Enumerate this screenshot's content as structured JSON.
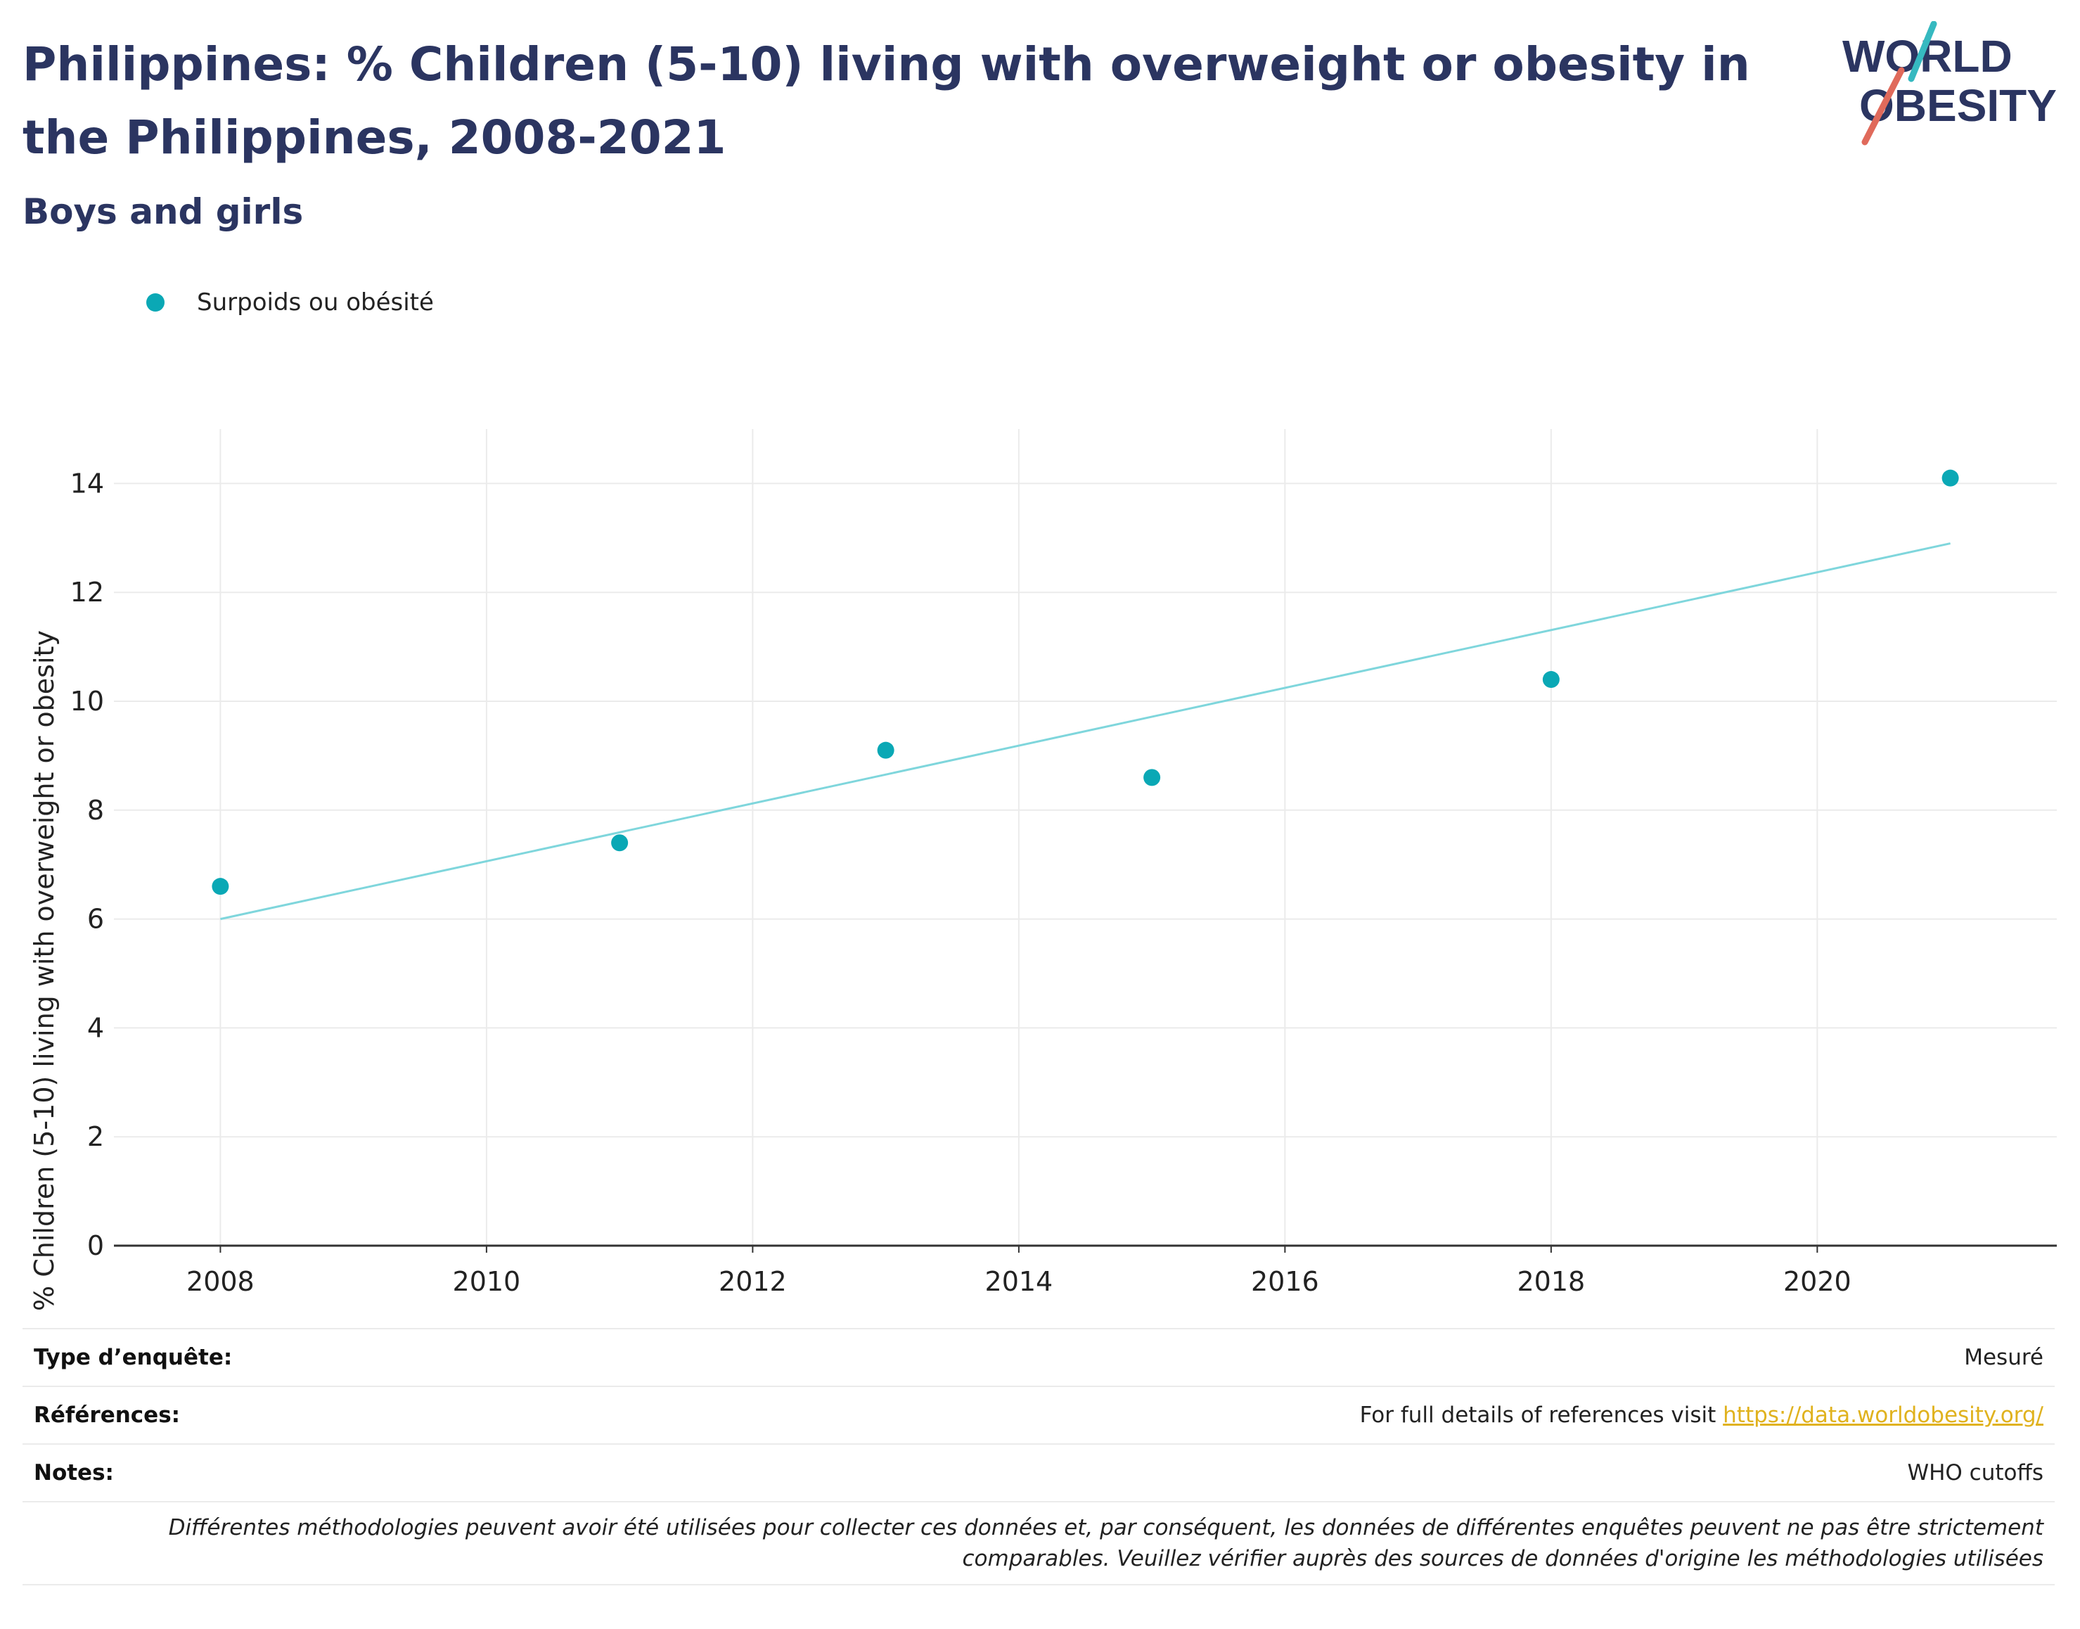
{
  "header": {
    "title": "Philippines: % Children (5-10) living with overweight or obesity in the Philippines, 2008-2021",
    "subtitle": "Boys and girls"
  },
  "logo": {
    "line1": "WORLD",
    "line2": "OBESITY",
    "accent_teal": "#36b9c0",
    "accent_red": "#e06a5b",
    "text_color": "#2b3561"
  },
  "legend": {
    "items": [
      {
        "label": "Surpoids ou obésité",
        "color": "#0aa8b5"
      }
    ]
  },
  "chart_data": {
    "type": "scatter",
    "title": "Philippines: % Children (5-10) living with overweight or obesity in the Philippines, 2008-2021",
    "subtitle": "Boys and girls",
    "xlabel": "",
    "ylabel": "% Children (5-10) living with overweight or obesity",
    "xlim": [
      2007.2,
      2021.8
    ],
    "ylim": [
      0,
      15
    ],
    "x_ticks": [
      2008,
      2010,
      2012,
      2014,
      2016,
      2018,
      2020
    ],
    "y_ticks": [
      0,
      2,
      4,
      6,
      8,
      10,
      12,
      14
    ],
    "grid": true,
    "legend_position": "top-left",
    "series": [
      {
        "name": "Surpoids ou obésité",
        "color": "#0aa8b5",
        "x": [
          2008,
          2011,
          2013,
          2015,
          2018,
          2021
        ],
        "y": [
          6.6,
          7.4,
          9.1,
          8.6,
          10.4,
          14.1
        ]
      }
    ],
    "trendline": {
      "color": "#7fd6dc",
      "x": [
        2008,
        2021
      ],
      "y": [
        6.0,
        12.9
      ]
    }
  },
  "info": {
    "survey_type_label": "Type d’enquête:",
    "survey_type_value": "Mesuré",
    "references_label": "Références:",
    "references_text": "For full details of references visit ",
    "references_link": "https://data.worldobesity.org/",
    "notes_label": "Notes:",
    "notes_value": "WHO cutoffs",
    "disclaimer_line1": "Différentes méthodologies peuvent avoir été utilisées pour collecter ces données et, par conséquent, les données de différentes enquêtes peuvent ne pas être strictement",
    "disclaimer_line2": "comparables. Veuillez vérifier auprès des sources de données d'origine les méthodologies utilisées"
  }
}
